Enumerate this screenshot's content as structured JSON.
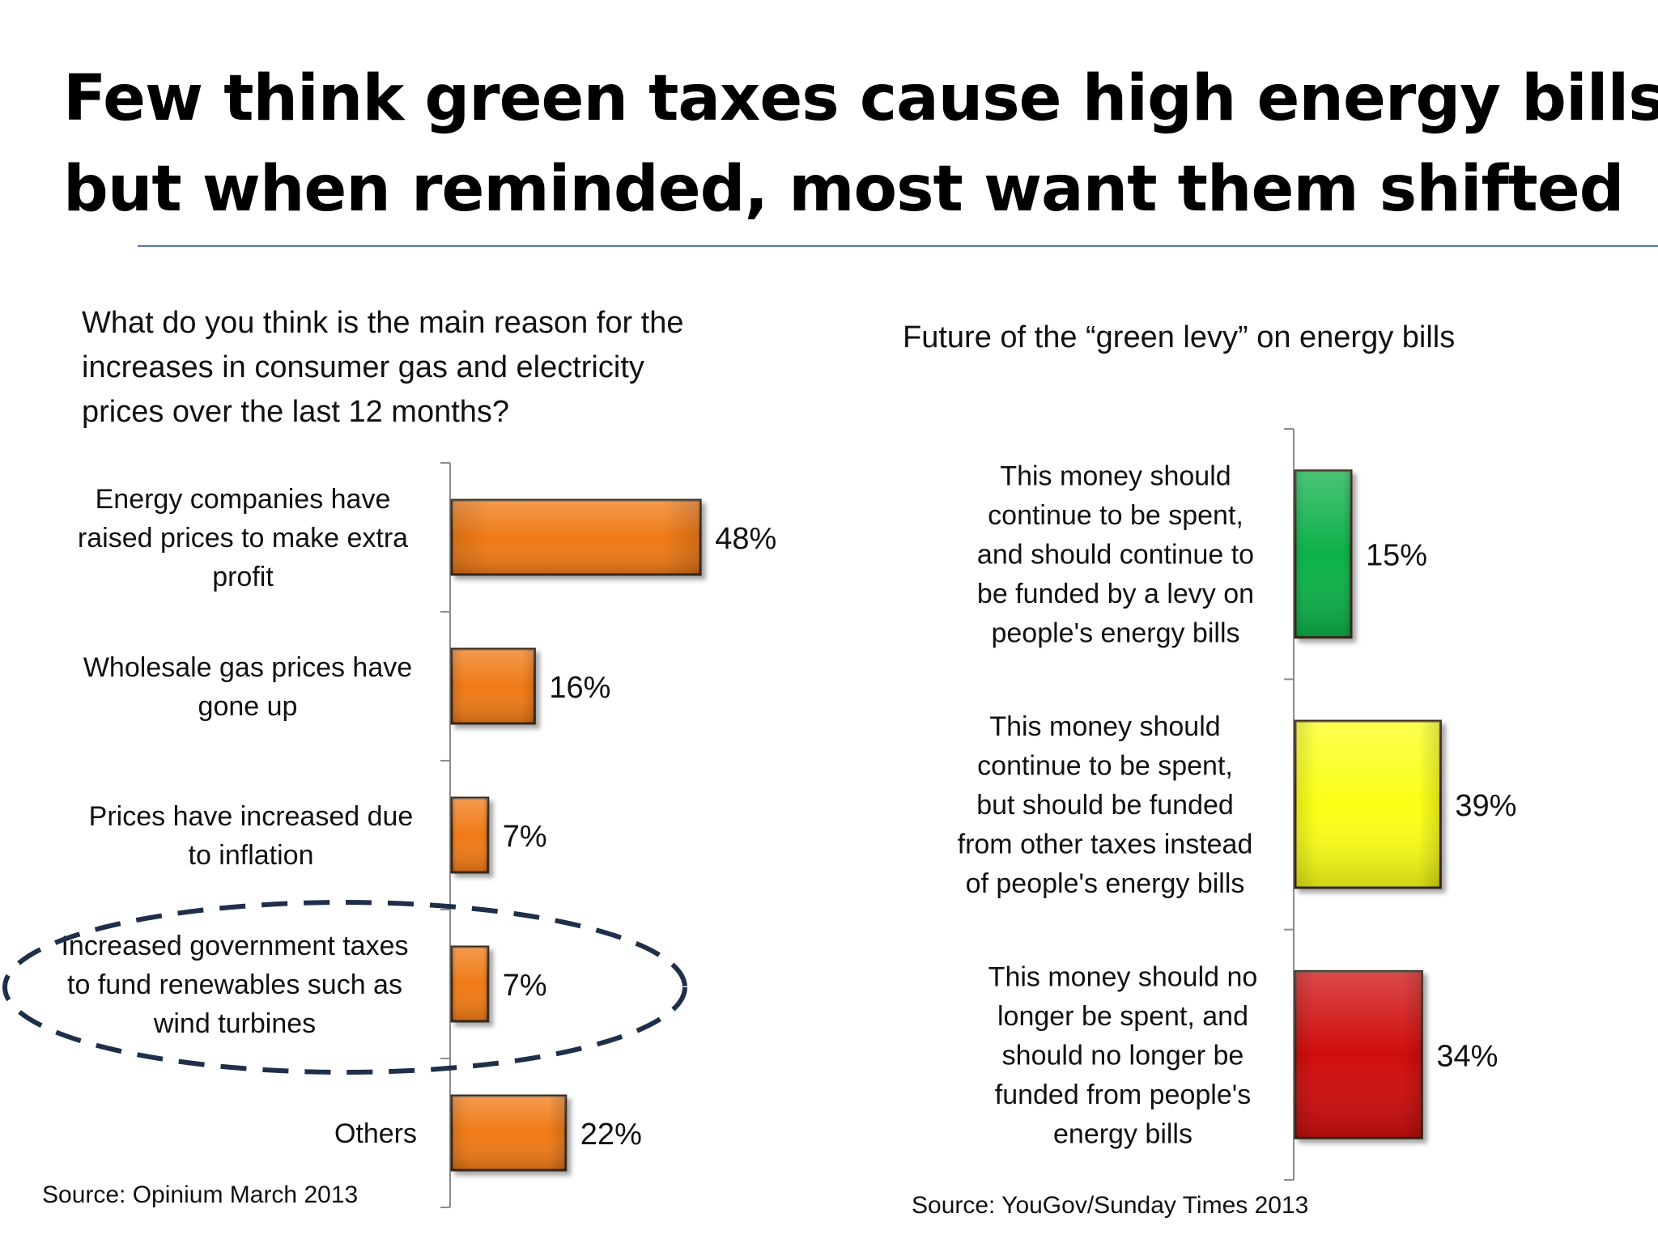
{
  "slide": {
    "title_line1": "Few think green taxes cause high energy bills –",
    "title_line2": "but when reminded, most want them shifted"
  },
  "chart_data": [
    {
      "type": "bar",
      "orientation": "horizontal",
      "title_lines": [
        "What do you think is the main reason for the",
        "increases in consumer gas and electricity",
        "prices over the last 12 months?"
      ],
      "categories": [
        [
          "Energy companies have",
          "raised prices to make extra",
          "profit"
        ],
        [
          "Wholesale gas prices have",
          "gone up"
        ],
        [
          "Prices have increased due",
          "to inflation"
        ],
        [
          "Increased government taxes",
          "to fund renewables such as",
          "wind turbines"
        ],
        [
          "Others"
        ]
      ],
      "values": [
        48,
        16,
        7,
        7,
        22
      ],
      "value_labels": [
        "48%",
        "16%",
        "7%",
        "7%",
        "22%"
      ],
      "bar_color": "#f07a12",
      "highlighted_category_index": 3,
      "highlight_style": "dashed ellipse",
      "highlight_color": "#1f2f4a",
      "xlim": [
        0,
        100
      ],
      "source": "Source: Opinium March 2013"
    },
    {
      "type": "bar",
      "orientation": "horizontal",
      "title": "Future of the “green levy” on energy bills",
      "categories": [
        [
          "This money should",
          "continue to be spent,",
          "and should continue to",
          "be funded by a levy on",
          "people's energy bills"
        ],
        [
          "This money should",
          "continue to be spent,",
          "but should be funded",
          "from other taxes instead",
          "of people's energy bills"
        ],
        [
          "This money should no",
          "longer be spent, and",
          "should no longer be",
          "funded from people's",
          "energy bills"
        ]
      ],
      "values": [
        15,
        39,
        34
      ],
      "value_labels": [
        "15%",
        "39%",
        "34%"
      ],
      "bar_colors": [
        "#10b14a",
        "#fbff14",
        "#d00b0b"
      ],
      "xlim": [
        0,
        100
      ],
      "source": "Source: YouGov/Sunday Times 2013"
    }
  ]
}
